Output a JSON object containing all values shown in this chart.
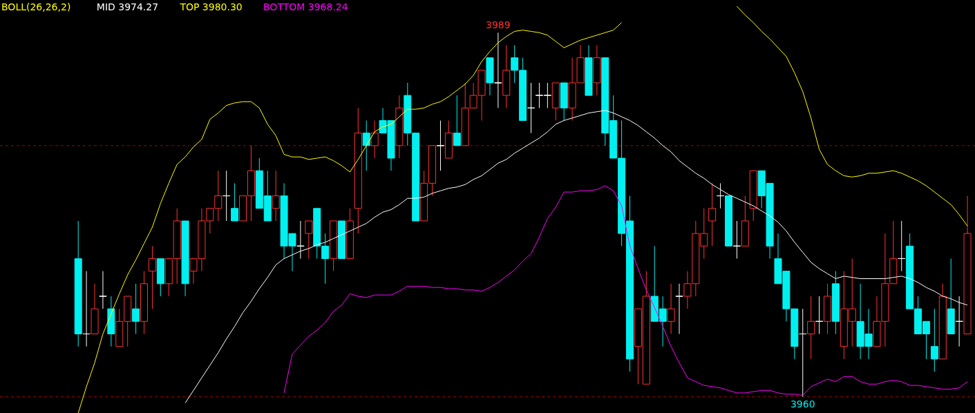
{
  "chart_data": {
    "type": "candlestick",
    "title": "BOLL(26,26,2)",
    "categories": [
      null,
      null,
      null,
      null,
      null,
      null,
      null,
      null,
      null,
      null,
      null,
      null,
      null,
      null,
      null,
      null,
      null,
      null,
      null,
      null,
      null,
      null,
      null,
      null,
      null,
      null,
      null,
      null,
      null,
      null,
      null,
      null,
      null,
      null,
      null,
      null,
      null,
      null,
      null,
      null,
      null,
      null,
      null,
      null,
      null,
      null,
      null,
      null,
      null,
      null,
      null,
      null,
      null,
      null,
      null,
      null,
      null,
      null,
      null,
      null,
      null,
      null,
      null,
      null,
      null,
      null,
      null,
      null,
      null,
      null,
      null,
      null,
      null,
      null,
      null,
      null,
      null,
      null,
      null,
      null,
      null,
      null,
      null,
      null,
      null,
      null,
      null,
      null,
      null,
      null,
      null,
      null,
      null,
      null,
      null,
      null,
      null,
      null,
      null,
      null,
      null,
      null,
      null,
      null,
      null,
      null,
      null,
      null,
      null
    ],
    "ohlc": [
      [
        3971,
        3974,
        3964,
        3965
      ],
      [
        3965,
        3970,
        3964,
        3965
      ],
      [
        3965,
        3969,
        3965,
        3967
      ],
      [
        3968,
        3970,
        3967,
        3968
      ],
      [
        3967,
        3968,
        3964,
        3965
      ],
      [
        3964,
        3967,
        3964,
        3966
      ],
      [
        3966,
        3968,
        3964,
        3968
      ],
      [
        3967,
        3969,
        3965,
        3966
      ],
      [
        3966,
        3970,
        3965,
        3969
      ],
      [
        3970,
        3972,
        3967,
        3971
      ],
      [
        3971,
        3971,
        3968,
        3969
      ],
      [
        3969,
        3971,
        3968,
        3971
      ],
      [
        3971,
        3975,
        3969,
        3974
      ],
      [
        3974,
        3974,
        3968,
        3969
      ],
      [
        3970,
        3971,
        3969,
        3971
      ],
      [
        3971,
        3975,
        3970,
        3974
      ],
      [
        3974,
        3975,
        3973,
        3975
      ],
      [
        3975,
        3978,
        3974,
        3976
      ],
      [
        3976,
        3978,
        3974,
        3976
      ],
      [
        3975,
        3977,
        3974,
        3974
      ],
      [
        3974,
        3976,
        3974,
        3976
      ],
      [
        3976,
        3980,
        3974,
        3978
      ],
      [
        3978,
        3979,
        3975,
        3975
      ],
      [
        3976,
        3978,
        3974,
        3974
      ],
      [
        3975,
        3978,
        3974,
        3976
      ],
      [
        3976,
        3977,
        3971,
        3972
      ],
      [
        3973,
        3973,
        3970,
        3972
      ],
      [
        3972,
        3974,
        3971,
        3972
      ],
      [
        3973,
        3974,
        3971,
        3974
      ],
      [
        3975,
        3975,
        3971,
        3972
      ],
      [
        3972,
        3973,
        3969,
        3971
      ],
      [
        3971,
        3974,
        3970,
        3974
      ],
      [
        3974,
        3974,
        3971,
        3971
      ],
      [
        3971,
        3975,
        3971,
        3974
      ],
      [
        3975,
        3983,
        3973,
        3981
      ],
      [
        3981,
        3982,
        3978,
        3980
      ],
      [
        3980,
        3982,
        3979,
        3981
      ],
      [
        3982,
        3983,
        3981,
        3981
      ],
      [
        3982,
        3982,
        3978,
        3979
      ],
      [
        3980,
        3984,
        3979,
        3983
      ],
      [
        3984,
        3985,
        3980,
        3981
      ],
      [
        3981,
        3981,
        3974,
        3974
      ],
      [
        3974,
        3978,
        3974,
        3977
      ],
      [
        3977,
        3980,
        3976,
        3980
      ],
      [
        3980,
        3982,
        3978,
        3980
      ],
      [
        3979,
        3982,
        3979,
        3981
      ],
      [
        3981,
        3984,
        3980,
        3980
      ],
      [
        3980,
        3985,
        3980,
        3983
      ],
      [
        3983,
        3985,
        3983,
        3984
      ],
      [
        3984,
        3986,
        3982,
        3986
      ],
      [
        3987,
        3987,
        3984,
        3985
      ],
      [
        3985,
        3989,
        3983,
        3985
      ],
      [
        3984,
        3988,
        3983,
        3986
      ],
      [
        3987,
        3988,
        3985,
        3986
      ],
      [
        3986,
        3987,
        3982,
        3982
      ],
      [
        3983,
        3985,
        3981,
        3983
      ],
      [
        3984,
        3985,
        3983,
        3984
      ],
      [
        3984,
        3985,
        3983,
        3984
      ],
      [
        3983,
        3985,
        3982,
        3985
      ],
      [
        3985,
        3985,
        3982,
        3983
      ],
      [
        3983,
        3987,
        3982,
        3985
      ],
      [
        3985,
        3988,
        3985,
        3987
      ],
      [
        3987,
        3988,
        3984,
        3984
      ],
      [
        3985,
        3988,
        3984,
        3987
      ],
      [
        3987,
        3987,
        3980,
        3981
      ],
      [
        3982,
        3984,
        3979,
        3979
      ],
      [
        3979,
        3982,
        3972,
        3973
      ],
      [
        3974,
        3976,
        3962,
        3963
      ],
      [
        3964,
        3967,
        3961,
        3967
      ],
      [
        3961,
        3970,
        3961,
        3968
      ],
      [
        3968,
        3972,
        3966,
        3966
      ],
      [
        3967,
        3968,
        3964,
        3966
      ],
      [
        3966,
        3969,
        3965,
        3967
      ],
      [
        3968,
        3969,
        3965,
        3968
      ],
      [
        3968,
        3970,
        3967,
        3969
      ],
      [
        3969,
        3974,
        3968,
        3973
      ],
      [
        3972,
        3975,
        3971,
        3973
      ],
      [
        3974,
        3977,
        3972,
        3975
      ],
      [
        3976,
        3977,
        3975,
        3976
      ],
      [
        3976,
        3976,
        3972,
        3972
      ],
      [
        3972,
        3974,
        3971,
        3972
      ],
      [
        3972,
        3976,
        3972,
        3974
      ],
      [
        3975,
        3978,
        3974,
        3978
      ],
      [
        3978,
        3978,
        3975,
        3976
      ],
      [
        3977,
        3977,
        3971,
        3972
      ],
      [
        3971,
        3973,
        3969,
        3969
      ],
      [
        3970,
        3970,
        3966,
        3967
      ],
      [
        3967,
        3967,
        3963,
        3964
      ],
      [
        3965,
        3967,
        3960,
        3965
      ],
      [
        3965,
        3968,
        3963,
        3966
      ],
      [
        3966,
        3968,
        3965,
        3966
      ],
      [
        3966,
        3969,
        3965,
        3968
      ],
      [
        3969,
        3970,
        3965,
        3966
      ],
      [
        3964,
        3970,
        3963,
        3967
      ],
      [
        3966,
        3971,
        3964,
        3967
      ],
      [
        3966,
        3969,
        3963,
        3964
      ],
      [
        3965,
        3967,
        3963,
        3964
      ],
      [
        3964,
        3968,
        3964,
        3966
      ],
      [
        3966,
        3973,
        3964,
        3969
      ],
      [
        3969,
        3974,
        3969,
        3971
      ],
      [
        3971,
        3974,
        3970,
        3971
      ],
      [
        3972,
        3973,
        3967,
        3967
      ],
      [
        3967,
        3968,
        3965,
        3965
      ],
      [
        3966,
        3966,
        3963,
        3965
      ],
      [
        3964,
        3967,
        3962,
        3963
      ],
      [
        3963,
        3969,
        3963,
        3968
      ],
      [
        3967,
        3971,
        3965,
        3965
      ],
      [
        3966,
        3968,
        3964,
        3966
      ],
      [
        3965,
        3976,
        3965,
        3973
      ]
    ],
    "colors": [
      "#00f0f0",
      "#ffffff",
      "#ff3232",
      "#ffffff",
      "#00f0f0",
      "#ff3232",
      "#ff3232",
      "#00f0f0",
      "#ff3232",
      "#ff3232",
      "#00f0f0",
      "#ff3232",
      "#ff3232",
      "#00f0f0",
      "#ff3232",
      "#ff3232",
      "#ff3232",
      "#ff3232",
      "#ffffff",
      "#00f0f0",
      "#ff3232",
      "#ff3232",
      "#00f0f0",
      "#00f0f0",
      "#ff3232",
      "#00f0f0",
      "#00f0f0",
      "#ffffff",
      "#ff3232",
      "#00f0f0",
      "#00f0f0",
      "#ff3232",
      "#00f0f0",
      "#ff3232",
      "#ff3232",
      "#00f0f0",
      "#ff3232",
      "#00f0f0",
      "#00f0f0",
      "#ff3232",
      "#00f0f0",
      "#00f0f0",
      "#ff3232",
      "#ff3232",
      "#ffffff",
      "#ff3232",
      "#00f0f0",
      "#ff3232",
      "#ff3232",
      "#ff3232",
      "#00f0f0",
      "#ffffff",
      "#ff3232",
      "#00f0f0",
      "#00f0f0",
      "#ffffff",
      "#ffffff",
      "#ffffff",
      "#ff3232",
      "#00f0f0",
      "#ff3232",
      "#ff3232",
      "#00f0f0",
      "#ff3232",
      "#00f0f0",
      "#00f0f0",
      "#00f0f0",
      "#00f0f0",
      "#ff3232",
      "#ff3232",
      "#00f0f0",
      "#00f0f0",
      "#ff3232",
      "#ffffff",
      "#ff3232",
      "#ff3232",
      "#ff3232",
      "#ff3232",
      "#ffffff",
      "#00f0f0",
      "#ffffff",
      "#ff3232",
      "#ff3232",
      "#00f0f0",
      "#00f0f0",
      "#00f0f0",
      "#00f0f0",
      "#00f0f0",
      "#ffffff",
      "#ff3232",
      "#ffffff",
      "#ff3232",
      "#00f0f0",
      "#ff3232",
      "#ff3232",
      "#00f0f0",
      "#00f0f0",
      "#ff3232",
      "#ff3232",
      "#ff3232",
      "#ffffff",
      "#00f0f0",
      "#00f0f0",
      "#00f0f0",
      "#00f0f0",
      "#ff3232",
      "#00f0f0",
      "#ffffff",
      "#ff3232"
    ],
    "series": [
      {
        "name": "MID 3974.27",
        "type": "line",
        "color": "#ffffff",
        "values": [
          null,
          null,
          null,
          null,
          null,
          null,
          null,
          null,
          null,
          null,
          null,
          null,
          null,
          3959.5,
          3960.5,
          3961.5,
          3962.5,
          3963.5,
          3964.6,
          3965.6,
          3966.7,
          3967.6,
          3968.6,
          3969.5,
          3970.5,
          3971.0,
          3971.3,
          3971.6,
          3971.8,
          3972.1,
          3972.3,
          3972.6,
          3972.9,
          3973.2,
          3973.5,
          3973.8,
          3974.3,
          3974.7,
          3974.9,
          3975.3,
          3975.8,
          3975.8,
          3975.9,
          3976.2,
          3976.4,
          3976.6,
          3976.7,
          3976.9,
          3977.3,
          3977.6,
          3978.1,
          3978.6,
          3978.9,
          3979.4,
          3979.8,
          3980.2,
          3980.6,
          3981.1,
          3981.7,
          3982.0,
          3982.2,
          3982.4,
          3982.6,
          3982.7,
          3982.8,
          3982.6,
          3982.3,
          3982.0,
          3981.6,
          3981.1,
          3980.6,
          3980.0,
          3979.5,
          3978.8,
          3978.3,
          3977.8,
          3977.4,
          3976.9,
          3976.5,
          3976.1,
          3975.8,
          3975.5,
          3975.2,
          3974.8,
          3974.4,
          3973.9,
          3973.2,
          3972.3,
          3971.5,
          3970.7,
          3970.2,
          3969.8,
          3969.4,
          3969.6,
          3969.5,
          3969.4,
          3969.4,
          3969.4,
          3969.4,
          3969.5,
          3969.6,
          3969.4,
          3969.1,
          3968.7,
          3968.4,
          3968.0,
          3967.8,
          3967.5,
          3967.3
        ]
      },
      {
        "name": "TOP 3980.30",
        "type": "line",
        "color": "#ffff00",
        "values": [
          3958.7,
          3960.8,
          3962.7,
          3965.0,
          3966.6,
          3968.2,
          3969.7,
          3970.9,
          3972.2,
          3973.5,
          3975.4,
          3977.0,
          3978.5,
          3979.1,
          3979.9,
          3980.5,
          3982.1,
          3982.6,
          3983.2,
          3983.4,
          3983.5,
          3983.5,
          3983.0,
          3981.7,
          3980.8,
          3979.3,
          3979.1,
          3979.1,
          3978.9,
          3979.0,
          3979.1,
          3978.8,
          3978.4,
          3977.9,
          3978.9,
          3980.0,
          3981.1,
          3981.5,
          3981.7,
          3982.3,
          3982.9,
          3982.9,
          3983.0,
          3983.3,
          3983.5,
          3983.9,
          3984.4,
          3984.9,
          3985.6,
          3986.7,
          3987.5,
          3988.2,
          3988.7,
          3989.1,
          3989.2,
          3989.1,
          3989.0,
          3988.8,
          3988.3,
          3987.8,
          3988.1,
          3988.4,
          3988.6,
          3988.8,
          3989.0,
          3989.2,
          3989.8,
          null,
          null,
          null,
          null,
          null,
          null,
          null,
          null,
          null,
          null,
          null,
          null,
          null,
          3991.1,
          3990.4,
          3989.8,
          3989.1,
          3988.5,
          3987.8,
          3987.1,
          3985.8,
          3984.3,
          3982.2,
          3979.7,
          3978.5,
          3978.0,
          3977.6,
          3977.5,
          3977.6,
          3977.8,
          3977.8,
          3977.9,
          3978.0,
          3977.8,
          3977.5,
          3977.2,
          3976.8,
          3976.3,
          3975.8,
          3975.3,
          3974.5,
          3973.6
        ]
      },
      {
        "name": "BOTTOM 3968.24",
        "type": "line",
        "color": "#ff00ff",
        "values": [
          null,
          null,
          null,
          null,
          null,
          null,
          null,
          null,
          null,
          null,
          null,
          null,
          null,
          null,
          null,
          null,
          null,
          null,
          null,
          null,
          null,
          null,
          null,
          null,
          null,
          3960.3,
          3963.4,
          3964.1,
          3964.8,
          3965.3,
          3965.9,
          3966.8,
          3967.3,
          3968.2,
          3968.0,
          3967.9,
          3968.1,
          3968.1,
          3968.1,
          3968.4,
          3968.8,
          3968.8,
          3968.8,
          3968.7,
          3968.7,
          3968.6,
          3968.6,
          3968.5,
          3968.5,
          3968.4,
          3968.7,
          3969.1,
          3969.6,
          3970.1,
          3970.8,
          3971.4,
          3972.7,
          3974.2,
          3975.1,
          3976.3,
          3976.3,
          3976.4,
          3976.4,
          3976.5,
          3976.8,
          3976.4,
          3975.2,
          3972.0,
          3970.2,
          3968.5,
          3967.1,
          3965.6,
          3964.0,
          3962.7,
          3961.5,
          3961.2,
          3960.9,
          3960.8,
          3960.7,
          3960.5,
          3960.3,
          3960.3,
          3960.4,
          3960.5,
          3960.5,
          3960.3,
          3960.2,
          3960.2,
          3960.1,
          3960.8,
          3961.1,
          3961.4,
          3961.2,
          3961.6,
          3961.6,
          3961.2,
          3961.0,
          3961.0,
          3961.2,
          3961.3,
          3961.2,
          3960.9,
          3960.9,
          3960.8,
          3960.7,
          3960.6,
          3960.6,
          3960.7,
          3961.2
        ]
      }
    ],
    "ylim": [
      3958.7,
      3991.6
    ],
    "ref_lines": [
      {
        "axis": "y",
        "value": 3980,
        "color": "#a00000",
        "line_style": "dashed"
      },
      {
        "axis": "y",
        "value": 3960,
        "color": "#a00000",
        "line_style": "dashed"
      }
    ],
    "annotations": [
      {
        "text": "3989",
        "y": 3989
      },
      {
        "text": "3960",
        "y": 3960
      }
    ],
    "legend": "top left",
    "grid": false,
    "tick_labels": false
  }
}
